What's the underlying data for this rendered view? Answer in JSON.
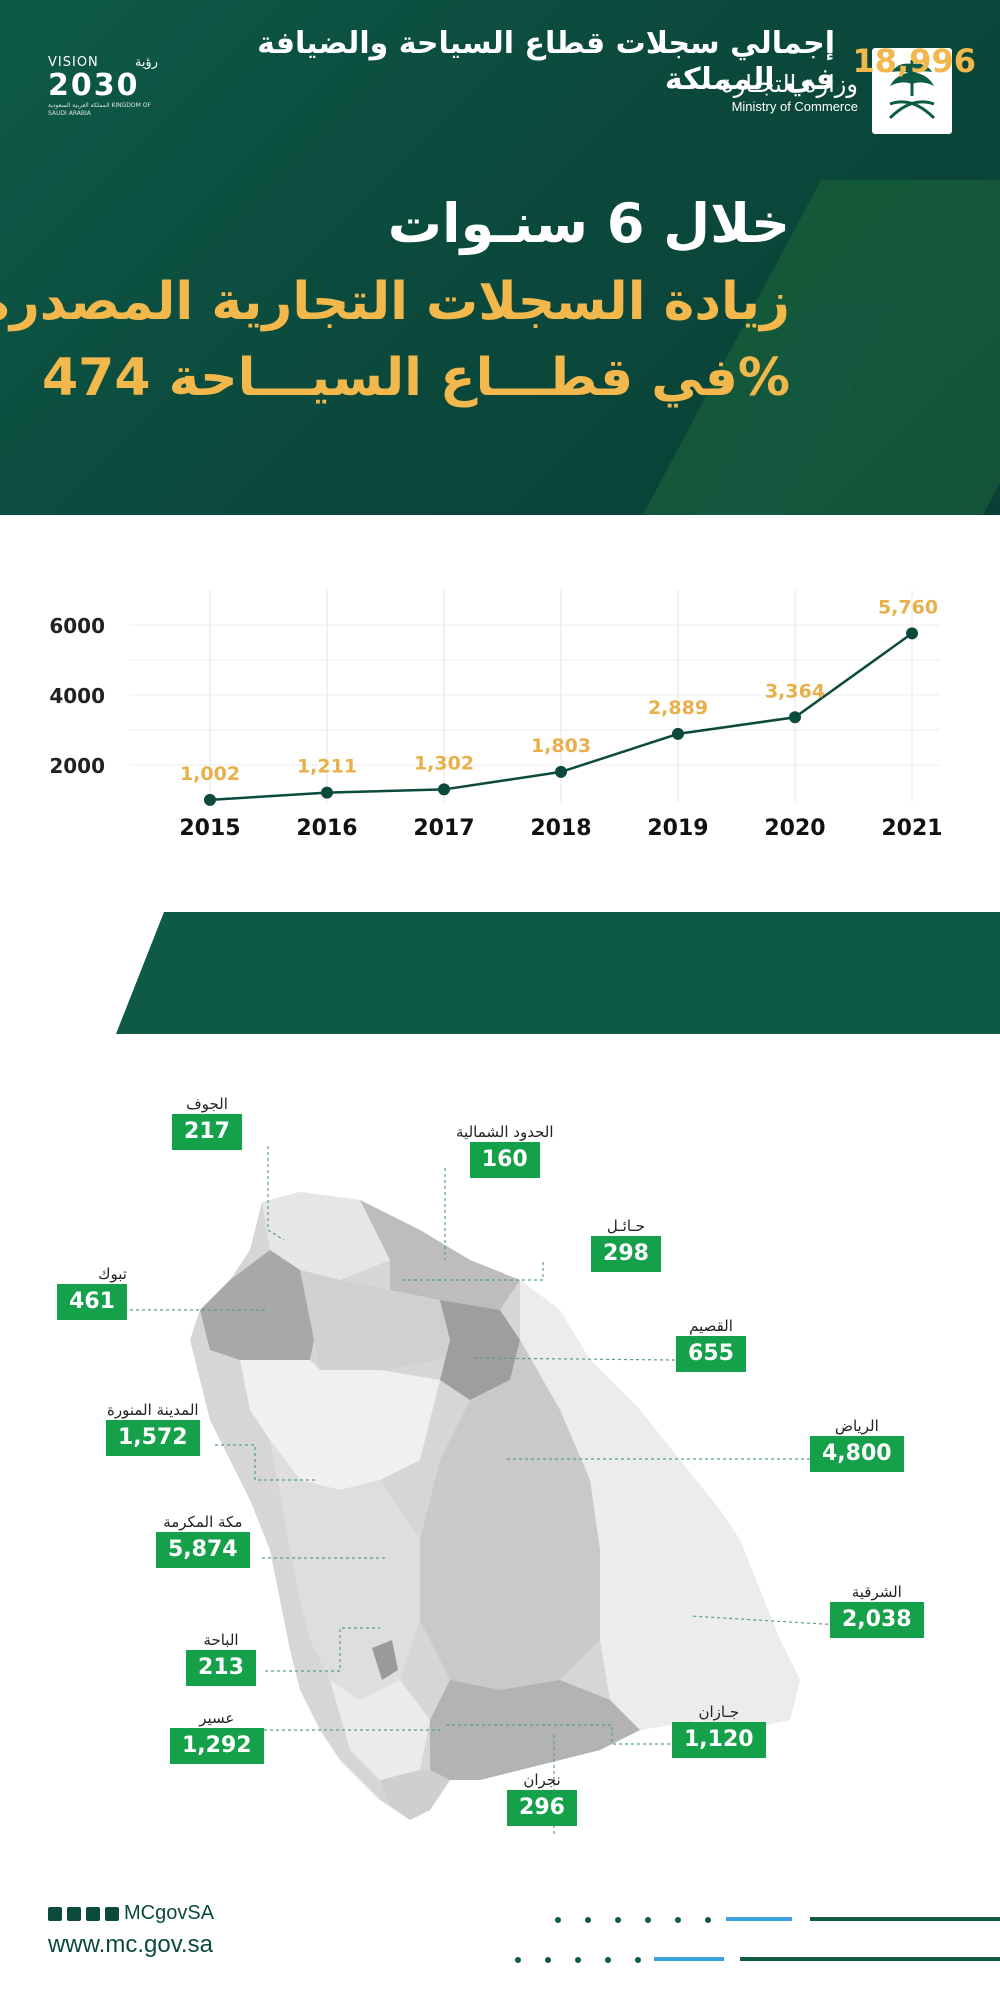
{
  "header": {
    "vision_label": "VISION",
    "vision_ar": "رؤية",
    "vision_year": "2030",
    "vision_sub": "المملكة العربية السعودية KINGDOM OF SAUDI ARABIA",
    "ministry_ar": "وزارة التجـارة",
    "ministry_en": "Ministry of Commerce",
    "title_line1": "خلال 6 سنـوات",
    "title_line2": "زيادة السجلات التجارية المصدرة",
    "title_line3": "في قطـــاع السيـــاحة 474%"
  },
  "chart_data": {
    "type": "line",
    "x": [
      "2015",
      "2016",
      "2017",
      "2018",
      "2019",
      "2020",
      "2021"
    ],
    "values": [
      1002,
      1211,
      1302,
      1803,
      2889,
      3364,
      5760
    ],
    "value_labels": [
      "1,002",
      "1,211",
      "1,302",
      "1,803",
      "2,889",
      "3,364",
      "5,760"
    ],
    "y_ticks": [
      "2000",
      "4000",
      "6000"
    ],
    "grid": true,
    "line_color": "#0b4a3d",
    "label_color": "#e8b04a"
  },
  "total": {
    "label_line1": "إجمالي سجلات قطاع السياحة والضيافة",
    "label_line2": "في المملكة",
    "value": "18,996"
  },
  "regions": [
    {
      "name": "الجوف",
      "value": "217"
    },
    {
      "name": "الحدود الشمالية",
      "value": "160"
    },
    {
      "name": "حـائـل",
      "value": "298"
    },
    {
      "name": "تبوك",
      "value": "461"
    },
    {
      "name": "القصيم",
      "value": "655"
    },
    {
      "name": "المدينة المنورة",
      "value": "1,572"
    },
    {
      "name": "الرياض",
      "value": "4,800"
    },
    {
      "name": "مكة المكرمة",
      "value": "5,874"
    },
    {
      "name": "الشرقية",
      "value": "2,038"
    },
    {
      "name": "الباحة",
      "value": "213"
    },
    {
      "name": "جـازان",
      "value": "1,120"
    },
    {
      "name": "عسير",
      "value": "1,292"
    },
    {
      "name": "نجران",
      "value": "296"
    }
  ],
  "footer": {
    "handle": "MCgovSA",
    "website": "www.mc.gov.sa"
  },
  "colors": {
    "brand_green": "#0e5a47",
    "accent_gold": "#f2b84b",
    "badge_green": "#15a04a"
  }
}
